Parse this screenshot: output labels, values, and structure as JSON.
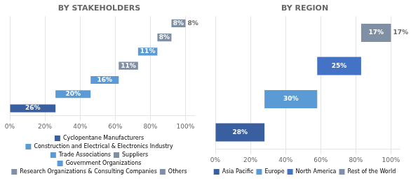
{
  "chart_data": [
    {
      "type": "waterfall",
      "orientation": "horizontal",
      "title": "BY STAKEHOLDERS",
      "categories": [
        "Cyclopentane Manufacturers",
        "Construction and Electrical & Electronics Industry",
        "Trade Associations",
        "Suppliers",
        "Government Organizations",
        "Research Organizations & Consulting Companies",
        "Others"
      ],
      "values": [
        26,
        20,
        16,
        11,
        11,
        8,
        8
      ],
      "value_labels": [
        "26%",
        "20%",
        "16%",
        "11%",
        "11%",
        "8%",
        "8%"
      ],
      "colors": [
        "#3a5fa0",
        "#5b9bd5",
        "#5b9bd5",
        "#7f8fa4",
        "#5b9bd5",
        "#7f8fa4",
        "#7f8fa4"
      ],
      "data_labels": true,
      "xlim": [
        0,
        105
      ],
      "xticks": [
        {
          "value": 0,
          "label": "0%"
        },
        {
          "value": 20,
          "label": "20%"
        },
        {
          "value": 40,
          "label": "40%"
        },
        {
          "value": 60,
          "label": "60%"
        },
        {
          "value": 80,
          "label": "80%"
        },
        {
          "value": 100,
          "label": "100%"
        }
      ],
      "grid": true,
      "tick_labels": "x",
      "legend": "bottom",
      "annotations": [
        {
          "text": "8%",
          "category": "Others"
        }
      ]
    },
    {
      "type": "waterfall",
      "orientation": "horizontal",
      "title": "BY REGION",
      "categories": [
        "Asia Pacific",
        "Europe",
        "North America",
        "Rest of the World"
      ],
      "values": [
        28,
        30,
        25,
        17
      ],
      "value_labels": [
        "28%",
        "30%",
        "25%",
        "17%"
      ],
      "colors": [
        "#3a5fa0",
        "#5b9bd5",
        "#4472c4",
        "#7f8fa4"
      ],
      "data_labels": true,
      "xlim": [
        0,
        105
      ],
      "xticks": [
        {
          "value": 0,
          "label": "0%"
        },
        {
          "value": 20,
          "label": "20%"
        },
        {
          "value": 40,
          "label": "40%"
        },
        {
          "value": 60,
          "label": "60%"
        },
        {
          "value": 80,
          "label": "80%"
        },
        {
          "value": 100,
          "label": "100%"
        }
      ],
      "grid": true,
      "tick_labels": "x",
      "legend": "bottom",
      "annotations": [
        {
          "text": "17%",
          "category": "Rest of the World"
        }
      ]
    }
  ]
}
